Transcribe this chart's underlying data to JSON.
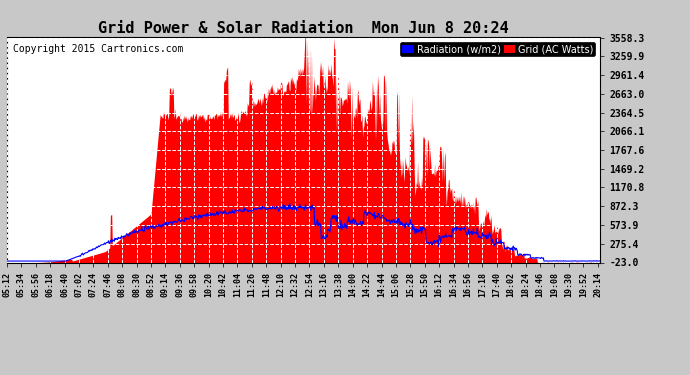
{
  "title": "Grid Power & Solar Radiation  Mon Jun 8 20:24",
  "copyright": "Copyright 2015 Cartronics.com",
  "bg_color": "#c8c8c8",
  "plot_bg_color": "#ffffff",
  "grid_color": "#bbbbbb",
  "yticks": [
    -23.0,
    275.4,
    573.9,
    872.3,
    1170.8,
    1469.2,
    1767.6,
    2066.1,
    2364.5,
    2663.0,
    2961.4,
    3259.9,
    3558.3
  ],
  "ymin": -23.0,
  "ymax": 3558.3,
  "legend_radiation_label": "Radiation (w/m2)",
  "legend_grid_label": "Grid (AC Watts)",
  "radiation_color": "#0000ff",
  "grid_fill_color": "#ff0000",
  "title_fontsize": 11,
  "copyright_fontsize": 7,
  "tick_fontsize": 7,
  "xtick_fontsize": 6
}
